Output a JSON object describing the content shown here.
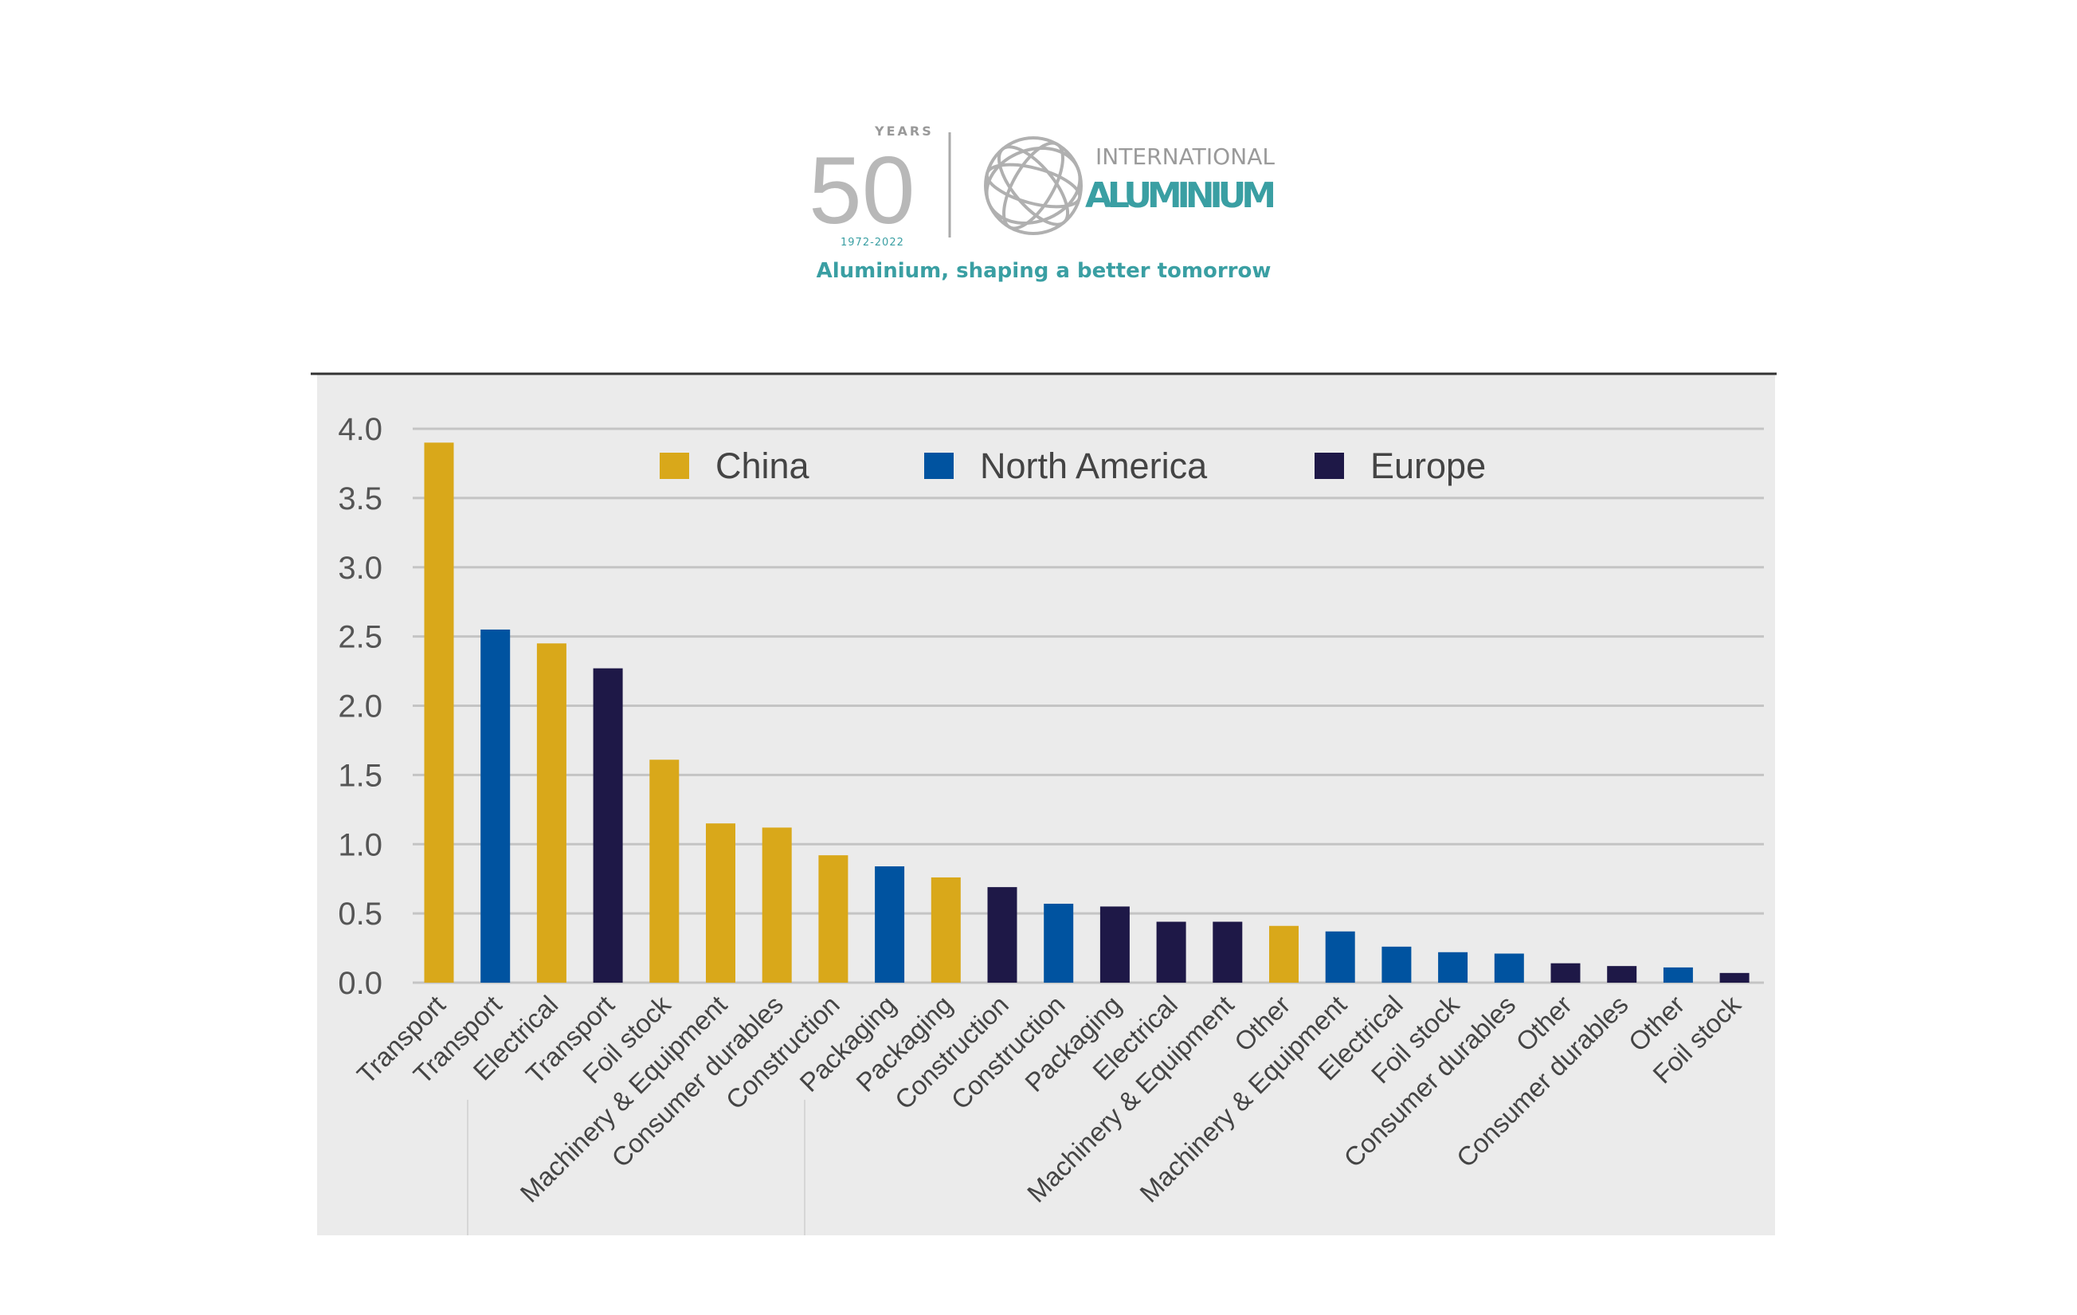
{
  "logo": {
    "years_word": "YEARS",
    "years_number": "50",
    "years_range": "1972-2022",
    "org_line1": "INTERNATIONAL",
    "org_line2": "ALUMINIUM",
    "tagline": "Aluminium, shaping a better tomorrow",
    "colors": {
      "teal": "#3a9fa3",
      "silver": "#b5b5b5"
    }
  },
  "chart_data": {
    "type": "bar",
    "title": "",
    "xlabel": "",
    "ylabel": "",
    "ylim": [
      0,
      4.0
    ],
    "yticks": [
      "0.0",
      "0.5",
      "1.0",
      "1.5",
      "2.0",
      "2.5",
      "3.0",
      "3.5",
      "4.0"
    ],
    "grid": true,
    "legend_placement": "top-center",
    "legend": [
      {
        "name": "China",
        "color": "#d9a81a"
      },
      {
        "name": "North America",
        "color": "#0053a0"
      },
      {
        "name": "Europe",
        "color": "#1e1847"
      }
    ],
    "bars": [
      {
        "category": "Transport",
        "series": "China",
        "value": 3.9
      },
      {
        "category": "Transport",
        "series": "North America",
        "value": 2.55
      },
      {
        "category": "Electrical",
        "series": "China",
        "value": 2.45
      },
      {
        "category": "Transport",
        "series": "Europe",
        "value": 2.27
      },
      {
        "category": "Foil stock",
        "series": "China",
        "value": 1.61
      },
      {
        "category": "Machinery & Equipment",
        "series": "China",
        "value": 1.15
      },
      {
        "category": "Consumer durables",
        "series": "China",
        "value": 1.12
      },
      {
        "category": "Construction",
        "series": "China",
        "value": 0.92
      },
      {
        "category": "Packaging",
        "series": "North America",
        "value": 0.84
      },
      {
        "category": "Packaging",
        "series": "China",
        "value": 0.76
      },
      {
        "category": "Construction",
        "series": "Europe",
        "value": 0.69
      },
      {
        "category": "Construction",
        "series": "North America",
        "value": 0.57
      },
      {
        "category": "Packaging",
        "series": "Europe",
        "value": 0.55
      },
      {
        "category": "Electrical",
        "series": "Europe",
        "value": 0.44
      },
      {
        "category": "Machinery & Equipment",
        "series": "Europe",
        "value": 0.44
      },
      {
        "category": "Other",
        "series": "China",
        "value": 0.41
      },
      {
        "category": "Machinery & Equipment",
        "series": "North America",
        "value": 0.37
      },
      {
        "category": "Electrical",
        "series": "North America",
        "value": 0.26
      },
      {
        "category": "Foil stock",
        "series": "North America",
        "value": 0.22
      },
      {
        "category": "Consumer durables",
        "series": "North America",
        "value": 0.21
      },
      {
        "category": "Other",
        "series": "Europe",
        "value": 0.14
      },
      {
        "category": "Consumer durables",
        "series": "Europe",
        "value": 0.12
      },
      {
        "category": "Other",
        "series": "North America",
        "value": 0.11
      },
      {
        "category": "Foil stock",
        "series": "Europe",
        "value": 0.07
      }
    ]
  }
}
